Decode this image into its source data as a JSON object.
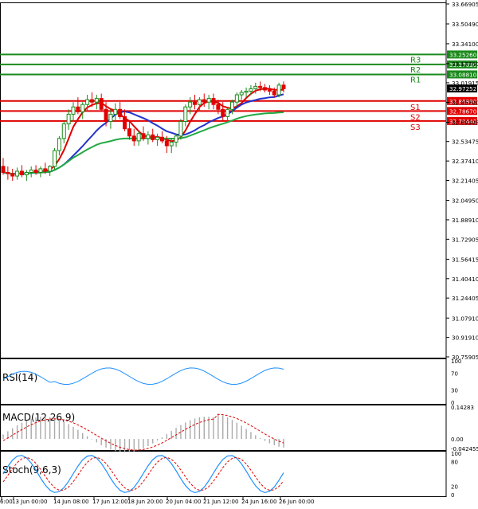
{
  "chart_data": {
    "type": "candlestick",
    "price_axis": {
      "ticks": [
        "33.66905",
        "33.50490",
        "33.34100",
        "33.17700",
        "33.01915",
        "32.85700",
        "32.69305",
        "32.53475",
        "32.37410",
        "32.21405",
        "32.04950",
        "31.88910",
        "31.72905",
        "31.56415",
        "31.40410",
        "31.24405",
        "31.07910",
        "30.91910",
        "30.75905"
      ],
      "ylim": [
        30.75905,
        33.66905
      ]
    },
    "time_labels": [
      "6:00",
      "13 Jun 00:00",
      "14 Jun 08:00",
      "17 Jun 12:00",
      "18 Jun 20:00",
      "20 Jun 04:00",
      "21 Jun 12:00",
      "24 Jun 16:00",
      "26 Jun 00:00"
    ],
    "levels": [
      {
        "name": "R3",
        "value": 33.2526,
        "label": "33.25260",
        "kind": "resistance",
        "color": "#1a8a1a"
      },
      {
        "name": "R2",
        "value": 33.1703,
        "label": "33.17030",
        "kind": "resistance",
        "color": "#1a8a1a"
      },
      {
        "name": "R1",
        "value": 33.0881,
        "label": "33.08810",
        "kind": "resistance",
        "color": "#1a8a1a"
      },
      {
        "name": "S1",
        "value": 32.8689,
        "label": "32.86890",
        "kind": "support",
        "color": "#e00000"
      },
      {
        "name": "S2",
        "value": 32.7867,
        "label": "32.78670",
        "kind": "support",
        "color": "#e00000"
      },
      {
        "name": "S3",
        "value": 32.7044,
        "label": "32.70440",
        "kind": "support",
        "color": "#e00000"
      }
    ],
    "current_price": {
      "label": "32.97252",
      "value": 32.97252
    },
    "candles": [
      [
        32.33,
        32.4,
        32.26,
        32.28
      ],
      [
        32.28,
        32.33,
        32.22,
        32.27
      ],
      [
        32.27,
        32.31,
        32.21,
        32.25
      ],
      [
        32.25,
        32.32,
        32.22,
        32.29
      ],
      [
        32.29,
        32.34,
        32.24,
        32.26
      ],
      [
        32.26,
        32.3,
        32.21,
        32.28
      ],
      [
        32.28,
        32.33,
        32.24,
        32.3
      ],
      [
        32.3,
        32.34,
        32.26,
        32.28
      ],
      [
        32.28,
        32.33,
        32.24,
        32.31
      ],
      [
        32.31,
        32.36,
        32.27,
        32.29
      ],
      [
        32.29,
        32.34,
        32.25,
        32.33
      ],
      [
        32.33,
        32.48,
        32.3,
        32.46
      ],
      [
        32.46,
        32.58,
        32.42,
        32.56
      ],
      [
        32.56,
        32.7,
        32.52,
        32.68
      ],
      [
        32.68,
        32.8,
        32.63,
        32.76
      ],
      [
        32.76,
        32.86,
        32.7,
        32.82
      ],
      [
        32.82,
        32.9,
        32.76,
        32.78
      ],
      [
        32.78,
        32.86,
        32.72,
        32.84
      ],
      [
        32.84,
        32.92,
        32.78,
        32.88
      ],
      [
        32.88,
        32.94,
        32.82,
        32.86
      ],
      [
        32.86,
        32.92,
        32.8,
        32.89
      ],
      [
        32.89,
        32.93,
        32.78,
        32.8
      ],
      [
        32.8,
        32.86,
        32.66,
        32.7
      ],
      [
        32.7,
        32.8,
        32.64,
        32.76
      ],
      [
        32.76,
        32.85,
        32.7,
        32.8
      ],
      [
        32.8,
        32.86,
        32.72,
        32.74
      ],
      [
        32.74,
        32.8,
        32.62,
        32.64
      ],
      [
        32.64,
        32.7,
        32.55,
        32.58
      ],
      [
        32.58,
        32.64,
        32.5,
        32.54
      ],
      [
        32.54,
        32.62,
        32.5,
        32.6
      ],
      [
        32.6,
        32.66,
        32.54,
        32.56
      ],
      [
        32.56,
        32.62,
        32.51,
        32.59
      ],
      [
        32.59,
        32.64,
        32.53,
        32.55
      ],
      [
        32.55,
        32.6,
        32.5,
        32.57
      ],
      [
        32.57,
        32.62,
        32.52,
        32.54
      ],
      [
        32.54,
        32.58,
        32.44,
        32.5
      ],
      [
        32.5,
        32.56,
        32.44,
        32.53
      ],
      [
        32.53,
        32.6,
        32.49,
        32.58
      ],
      [
        32.58,
        32.72,
        32.55,
        32.7
      ],
      [
        32.7,
        32.84,
        32.66,
        32.82
      ],
      [
        32.82,
        32.9,
        32.76,
        32.86
      ],
      [
        32.86,
        32.92,
        32.8,
        32.84
      ],
      [
        32.84,
        32.9,
        32.78,
        32.88
      ],
      [
        32.88,
        32.93,
        32.82,
        32.86
      ],
      [
        32.86,
        32.92,
        32.8,
        32.89
      ],
      [
        32.89,
        32.93,
        32.8,
        32.84
      ],
      [
        32.84,
        32.88,
        32.76,
        32.8
      ],
      [
        32.8,
        32.86,
        32.7,
        32.74
      ],
      [
        32.74,
        32.82,
        32.7,
        32.8
      ],
      [
        32.8,
        32.88,
        32.76,
        32.86
      ],
      [
        32.86,
        32.94,
        32.82,
        32.92
      ],
      [
        32.92,
        32.96,
        32.88,
        32.94
      ],
      [
        32.94,
        32.98,
        32.9,
        32.95
      ],
      [
        32.95,
        33.0,
        32.92,
        32.97
      ],
      [
        32.97,
        33.02,
        32.93,
        32.99
      ],
      [
        32.99,
        33.03,
        32.95,
        32.98
      ],
      [
        32.98,
        33.01,
        32.94,
        32.96
      ],
      [
        32.96,
        33.0,
        32.92,
        32.95
      ],
      [
        32.95,
        32.98,
        32.9,
        32.92
      ],
      [
        32.92,
        33.02,
        32.9,
        33.0
      ],
      [
        33.0,
        33.03,
        32.94,
        32.97
      ]
    ],
    "indicators": [
      {
        "name": "RSI(14)",
        "label": "RSI(14)",
        "scale": [
          "100",
          "70",
          "30",
          "0"
        ],
        "ylim": [
          0,
          100
        ]
      },
      {
        "name": "MACD(12,26,9)",
        "label": "MACD(12,26,9)",
        "scale": [
          "0.14283",
          "0.00",
          "-0.042455"
        ],
        "ylim": [
          -0.042455,
          0.14283
        ]
      },
      {
        "name": "Stoch(9,6,3)",
        "label": "Stoch(9,6,3)",
        "scale": [
          "100",
          "80",
          "20",
          "0"
        ],
        "ylim": [
          0,
          100
        ]
      }
    ],
    "colors": {
      "bull": "#1a8a1a",
      "bear": "#e00000",
      "ma_fast": "#e00000",
      "ma_mid": "#2233cc",
      "ma_slow": "#22aa44",
      "rsi": "#1e90ff",
      "macd_hist": "#aaaaaa",
      "macd_signal": "#e00000",
      "stoch_main": "#1e90ff",
      "stoch_signal": "#e00000"
    }
  }
}
